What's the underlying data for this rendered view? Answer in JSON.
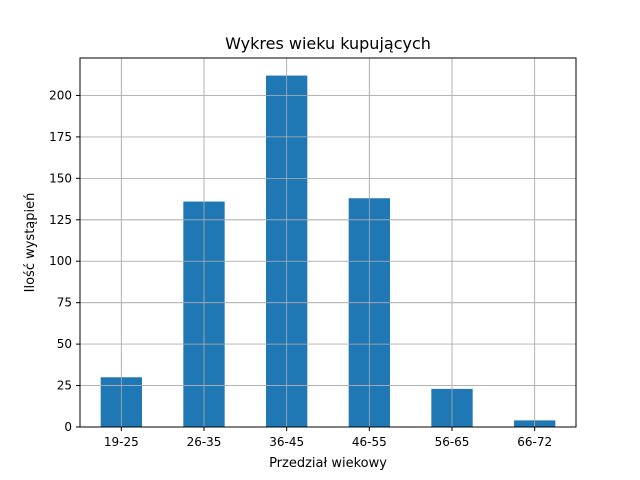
{
  "chart_data": {
    "type": "bar",
    "title": "Wykres wieku kupujących",
    "xlabel": "Przedział wiekowy",
    "ylabel": "Ilość wystąpień",
    "categories": [
      "19-25",
      "26-35",
      "36-45",
      "46-55",
      "56-65",
      "66-72"
    ],
    "values": [
      30,
      136,
      212,
      138,
      23,
      4
    ],
    "ylim": [
      0,
      222.6
    ],
    "yticks": [
      0,
      25,
      50,
      75,
      100,
      125,
      150,
      175,
      200
    ],
    "grid": true,
    "bar_color": "#1f77b4",
    "grid_color": "#b0b0b0"
  }
}
